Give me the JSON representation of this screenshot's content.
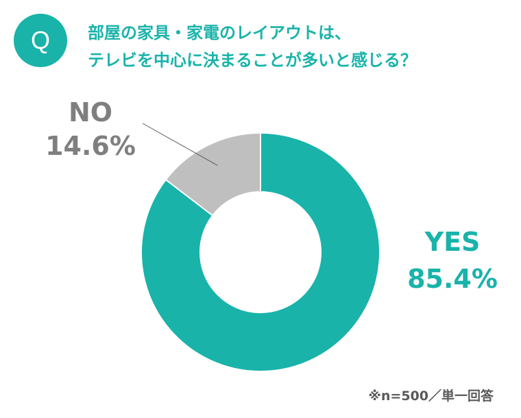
{
  "question_badge": "Q",
  "title_lines": [
    "部屋の家具・家電のレイアウトは、",
    "テレビを中心に決まることが多いと感じる？"
  ],
  "note": "※n=500／単一回答",
  "colors": {
    "accent": "#19b3aa",
    "no_slice": "#bfbfbf",
    "label_no": "#7f7f7f"
  },
  "chart_data": {
    "type": "pie",
    "style": "donut",
    "title": "部屋の家具・家電のレイアウトは、テレビを中心に決まることが多いと感じる？",
    "series": [
      {
        "name": "YES",
        "value": 85.4,
        "label": "85.4%",
        "color": "#19b3aa"
      },
      {
        "name": "NO",
        "value": 14.6,
        "label": "14.6%",
        "color": "#bfbfbf"
      }
    ]
  }
}
